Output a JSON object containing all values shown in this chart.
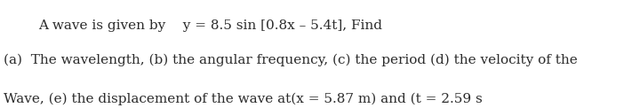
{
  "line1": "A wave is given by    y = 8.5 sin [0.8x – 5.4t], Find",
  "line2": "(a)  The wavelength, (b) the angular frequency, (c) the period (d) the velocity of the",
  "line3": "Wave, (e) the displacement of the wave at(x = 5.87 m) and (t = 2.59 s",
  "bg_color": "#ffffff",
  "text_color": "#2b2b2b",
  "fontsize": 11.0,
  "fig_width": 7.2,
  "fig_height": 1.22,
  "dpi": 100
}
